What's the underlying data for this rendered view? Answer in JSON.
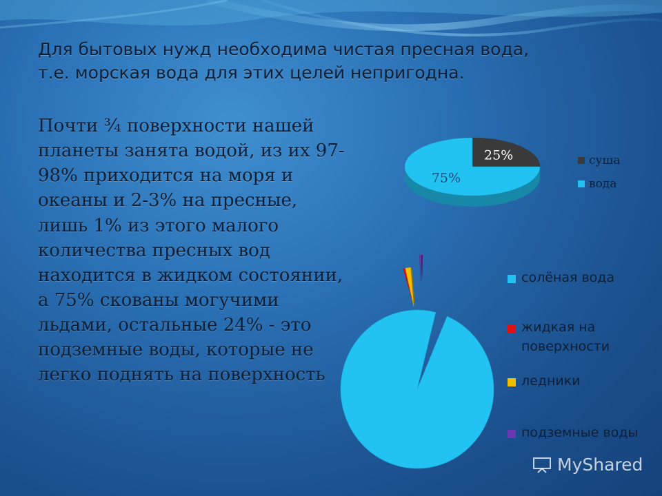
{
  "heading": {
    "line1": "Для бытовых нужд необходима чистая пресная вода,",
    "line2": "т.е. морская вода для этих целей непригодна."
  },
  "body": {
    "lines": [
      "Почти ¾ поверхности нашей",
      "планеты занята водой, из их 97-",
      "98% приходится на моря и",
      "океаны и 2-3% на пресные,",
      "лишь 1% из этого малого",
      "количества пресных вод",
      "находится в жидком состоянии,",
      "а 75% скованы могучими",
      "льдами, остальные 24% - это",
      "подземные воды, которые не",
      "легко поднять на поверхность"
    ]
  },
  "chart_data": [
    {
      "type": "pie",
      "style": "3d",
      "categories": [
        "суша",
        "вода"
      ],
      "values": [
        25,
        75
      ],
      "data_labels": [
        "25%",
        "75%"
      ],
      "colors": [
        "#3a3a3a",
        "#22c2f2"
      ],
      "legend_position": "right"
    },
    {
      "type": "pie",
      "style": "exploded",
      "categories": [
        "солёная вода",
        "жидкая на поверхности",
        "ледники",
        "подземные воды"
      ],
      "values": [
        97.5,
        0.025,
        1.875,
        0.6
      ],
      "colors": [
        "#22c2f2",
        "#e01010",
        "#f2c000",
        "#6a38b0"
      ],
      "legend_position": "right"
    }
  ],
  "watermark": {
    "text": "MyShared"
  }
}
